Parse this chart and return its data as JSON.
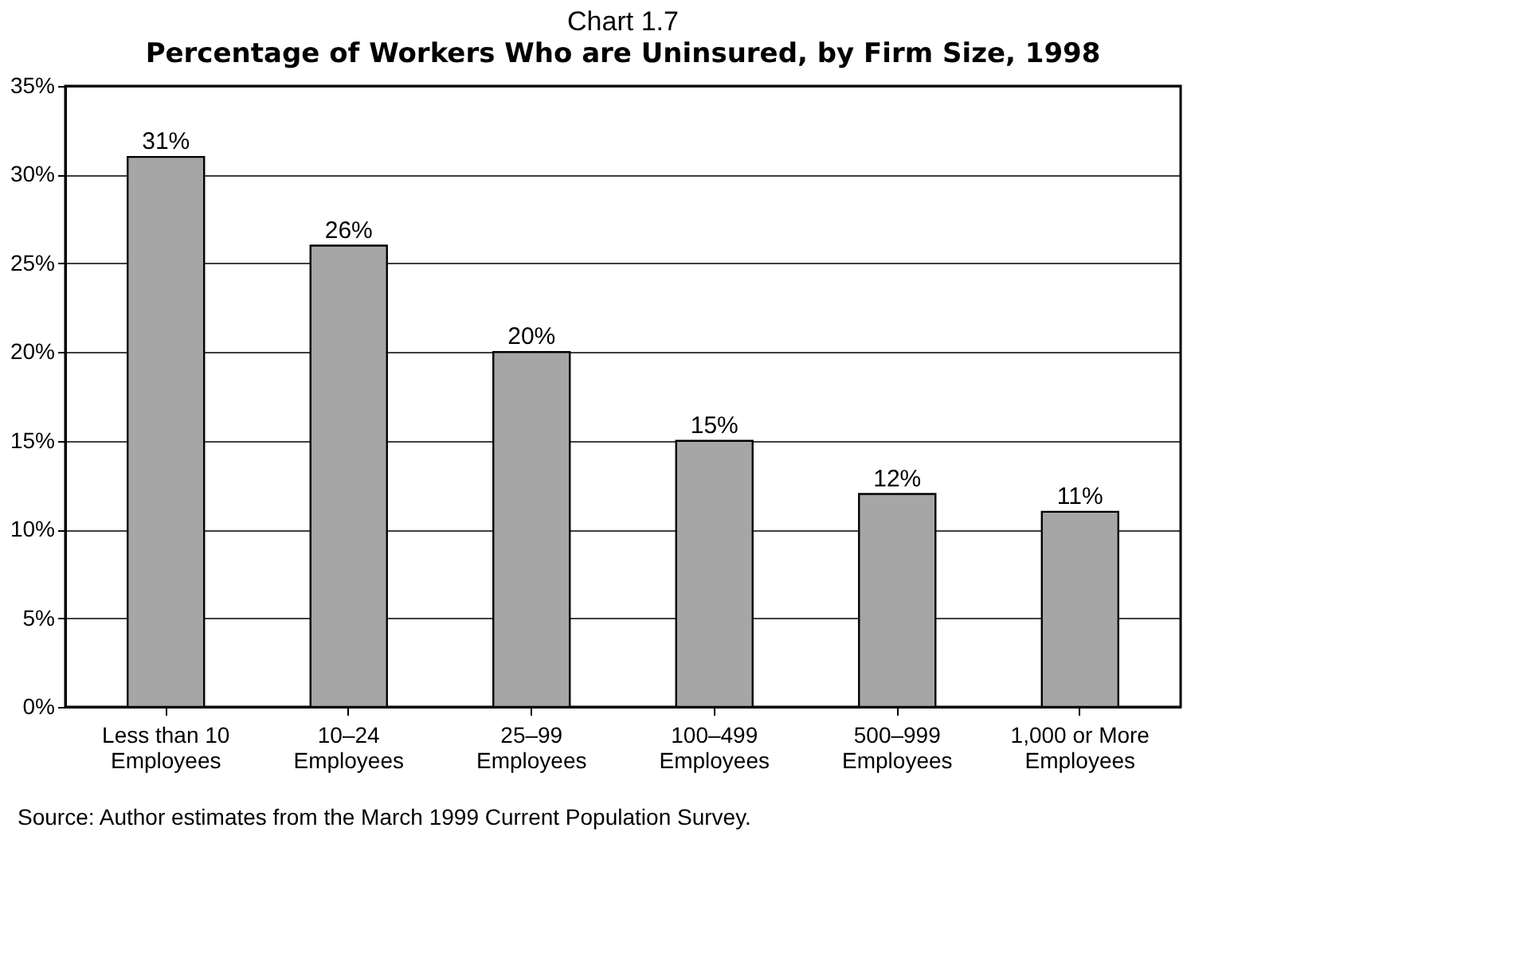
{
  "chart_data": {
    "type": "bar",
    "title": "Chart 1.7",
    "subtitle": "Percentage of Workers Who are Uninsured, by Firm Size, 1998",
    "categories": [
      "Less than 10\nEmployees",
      "10–24\nEmployees",
      "25–99\nEmployees",
      "100–499\nEmployees",
      "500–999\nEmployees",
      "1,000 or More\nEmployees"
    ],
    "values": [
      31,
      26,
      20,
      15,
      12,
      11
    ],
    "value_labels": [
      "31%",
      "26%",
      "20%",
      "15%",
      "12%",
      "11%"
    ],
    "color": "#a6a6a6",
    "ylim": [
      0,
      35
    ],
    "yticks": [
      {
        "value": 0,
        "label": "0%"
      },
      {
        "value": 5,
        "label": "5%"
      },
      {
        "value": 10,
        "label": "10%"
      },
      {
        "value": 15,
        "label": "15%"
      },
      {
        "value": 20,
        "label": "20%"
      },
      {
        "value": 25,
        "label": "25%"
      },
      {
        "value": 30,
        "label": "30%"
      },
      {
        "value": 35,
        "label": "35%"
      }
    ],
    "grid": "y",
    "annotations": [
      "Source: Author estimates from the March 1999 Current Population Survey."
    ]
  }
}
